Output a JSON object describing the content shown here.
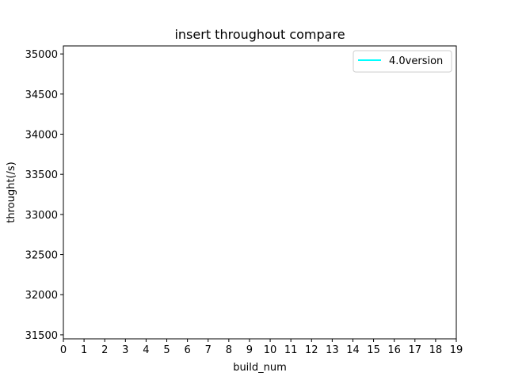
{
  "chart_data": {
    "type": "line",
    "title": "insert throughout compare",
    "xlabel": "build_num",
    "ylabel": "throught(/s)",
    "xlim": [
      0,
      19
    ],
    "ylim": [
      31450,
      35100
    ],
    "x_ticks": [
      0,
      1,
      2,
      3,
      4,
      5,
      6,
      7,
      8,
      9,
      10,
      11,
      12,
      13,
      14,
      15,
      16,
      17,
      18,
      19
    ],
    "y_ticks": [
      31500,
      32000,
      32500,
      33000,
      33500,
      34000,
      34500,
      35000
    ],
    "series": [
      {
        "name": "4.0version",
        "color": "#00ffff",
        "x": [],
        "y": []
      }
    ],
    "legend_position": "upper-right",
    "grid": false
  }
}
